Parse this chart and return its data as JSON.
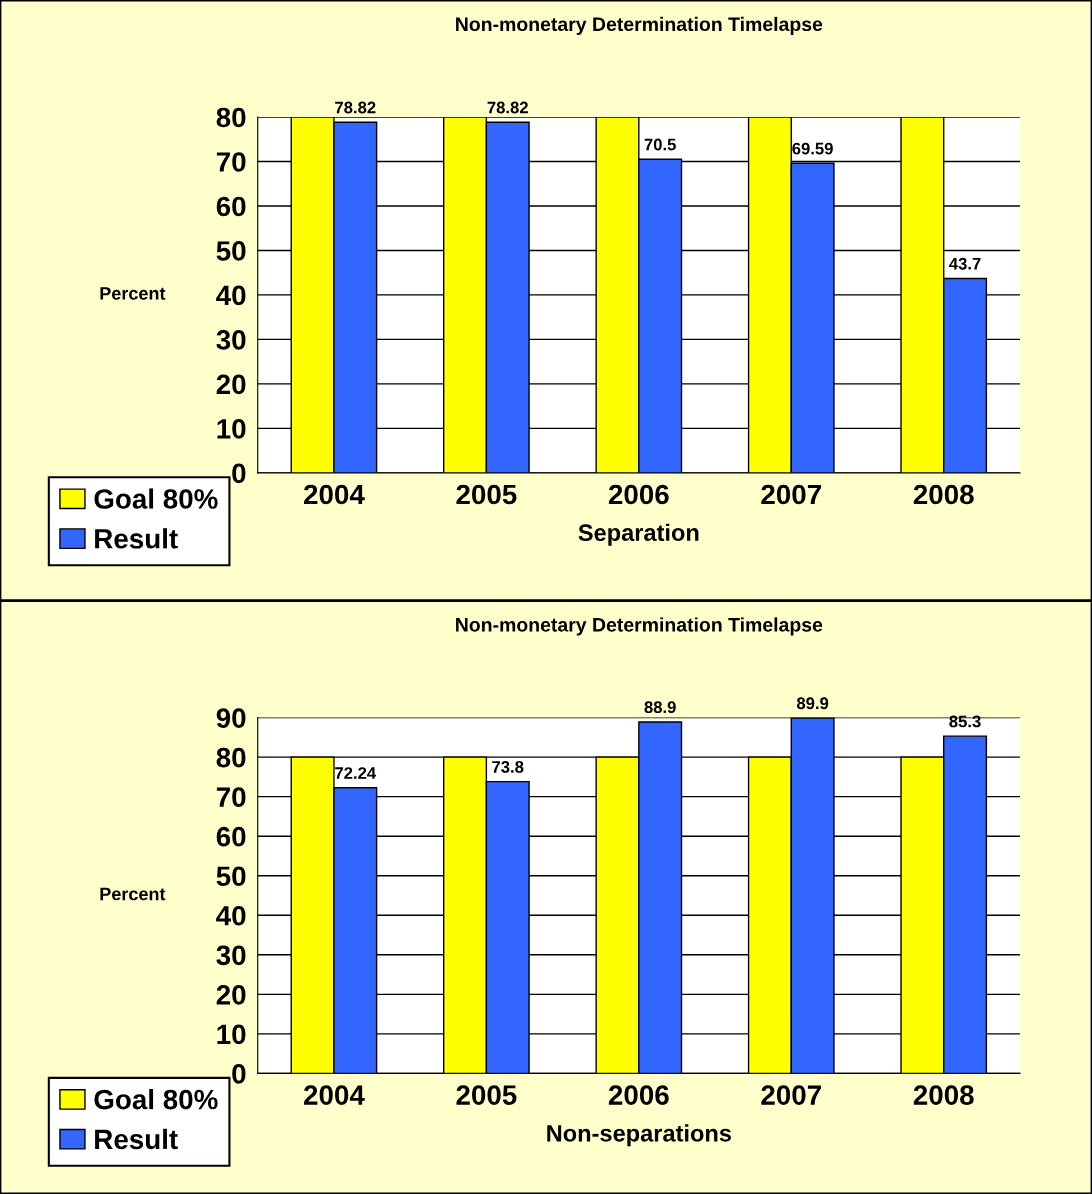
{
  "chart_data": [
    {
      "type": "bar",
      "title": "Non-monetary Determination Timelapse",
      "xlabel": "Separation",
      "ylabel": "Percent",
      "categories": [
        "2004",
        "2005",
        "2006",
        "2007",
        "2008"
      ],
      "series": [
        {
          "name": "Goal 80%",
          "color": "#ffff00",
          "values": [
            80,
            80,
            80,
            80,
            80
          ]
        },
        {
          "name": "Result",
          "color": "#3366ff",
          "values": [
            78.82,
            78.82,
            70.5,
            69.59,
            43.7
          ],
          "value_labels": [
            "78.82",
            "78.82",
            "70.5",
            "69.59",
            "43.7"
          ]
        }
      ],
      "ylim": [
        0,
        80
      ],
      "yticks": [
        0,
        10,
        20,
        30,
        40,
        50,
        60,
        70,
        80
      ],
      "grid": "y",
      "legend": "bottom left"
    },
    {
      "type": "bar",
      "title": "Non-monetary Determination Timelapse",
      "xlabel": "Non-separations",
      "ylabel": "Percent",
      "categories": [
        "2004",
        "2005",
        "2006",
        "2007",
        "2008"
      ],
      "series": [
        {
          "name": "Goal 80%",
          "color": "#ffff00",
          "values": [
            80,
            80,
            80,
            80,
            80
          ]
        },
        {
          "name": "Result",
          "color": "#3366ff",
          "values": [
            72.24,
            73.8,
            88.9,
            89.9,
            85.3
          ],
          "value_labels": [
            "72.24",
            "73.8",
            "88.9",
            "89.9",
            "85.3"
          ]
        }
      ],
      "ylim": [
        0,
        90
      ],
      "yticks": [
        0,
        10,
        20,
        30,
        40,
        50,
        60,
        70,
        80,
        90
      ],
      "grid": "y",
      "legend": "bottom left"
    }
  ]
}
